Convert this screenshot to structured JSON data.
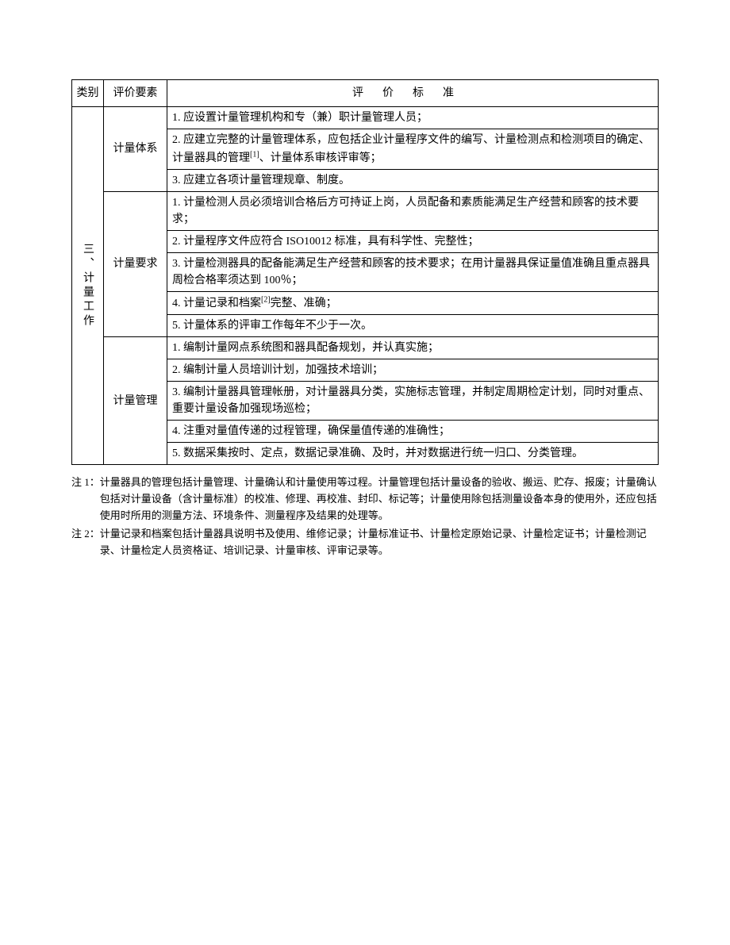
{
  "table": {
    "headers": {
      "category": "类别",
      "element": "评价要素",
      "standard": "评价标准"
    },
    "category": "三、计量工作",
    "sections": [
      {
        "element": "计量体系",
        "items": [
          "1. 应设置计量管理机构和专（兼）职计量管理人员；",
          "2. 应建立完整的计量管理体系，应包括企业计量程序文件的编写、计量检测点和检测项目的确定、计量器具的管理[1]、计量体系审核评审等；",
          "3. 应建立各项计量管理规章、制度。"
        ]
      },
      {
        "element": "计量要求",
        "items": [
          "1. 计量检测人员必须培训合格后方可持证上岗，人员配备和素质能满足生产经营和顾客的技术要求；",
          "2. 计量程序文件应符合 ISO10012 标准，具有科学性、完整性；",
          "3. 计量检测器具的配备能满足生产经营和顾客的技术要求；在用计量器具保证量值准确且重点器具周检合格率须达到 100％；",
          "4. 计量记录和档案[2]完整、准确；",
          "5. 计量体系的评审工作每年不少于一次。"
        ]
      },
      {
        "element": "计量管理",
        "items": [
          "1. 编制计量网点系统图和器具配备规划，并认真实施；",
          "2. 编制计量人员培训计划，加强技术培训；",
          "3. 编制计量器具管理帐册，对计量器具分类，实施标志管理，并制定周期检定计划，同时对重点、重要计量设备加强现场巡检；",
          "4. 注重对量值传递的过程管理，确保量值传递的准确性；",
          "5. 数据采集按时、定点，数据记录准确、及时，并对数据进行统一归口、分类管理。"
        ]
      }
    ]
  },
  "notes": [
    {
      "label": "注 1：",
      "text": "计量器具的管理包括计量管理、计量确认和计量使用等过程。计量管理包括计量设备的验收、搬运、贮存、报废；计量确认包括对计量设备（含计量标准）的校准、修理、再校准、封印、标记等；计量使用除包括测量设备本身的使用外，还应包括使用时所用的测量方法、环境条件、测量程序及结果的处理等。"
    },
    {
      "label": "注 2：",
      "text": "计量记录和档案包括计量器具说明书及使用、维修记录；计量标准证书、计量检定原始记录、计量检定证书；计量检测记录、计量检定人员资格证、培训记录、计量审核、评审记录等。"
    }
  ]
}
